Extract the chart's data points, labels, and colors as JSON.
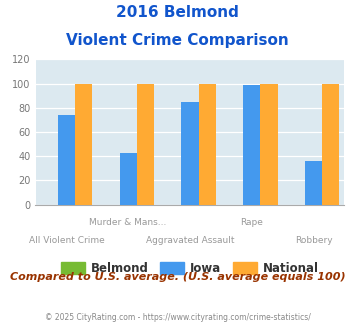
{
  "title_line1": "2016 Belmond",
  "title_line2": "Violent Crime Comparison",
  "iowa_values": [
    74,
    43,
    85,
    99,
    36
  ],
  "national_values": [
    100,
    100,
    100,
    100,
    100
  ],
  "belmond_values": [
    0,
    0,
    0,
    0,
    0
  ],
  "n_groups": 5,
  "group_labels_top": [
    "",
    "Murder & Mans...",
    "",
    "Rape",
    ""
  ],
  "group_labels_bottom": [
    "All Violent Crime",
    "",
    "Aggravated Assault",
    "",
    "Robbery"
  ],
  "belmond_color": "#77bb33",
  "iowa_color": "#4499ee",
  "national_color": "#ffaa33",
  "title_color": "#1155cc",
  "bg_color": "#dce9f0",
  "ylim": [
    0,
    120
  ],
  "yticks": [
    0,
    20,
    40,
    60,
    80,
    100,
    120
  ],
  "footer_text": "Compared to U.S. average. (U.S. average equals 100)",
  "copyright_text": "© 2025 CityRating.com - https://www.cityrating.com/crime-statistics/",
  "legend_labels": [
    "Belmond",
    "Iowa",
    "National"
  ],
  "footer_color": "#993300",
  "copyright_color": "#888888",
  "label_color": "#999999"
}
